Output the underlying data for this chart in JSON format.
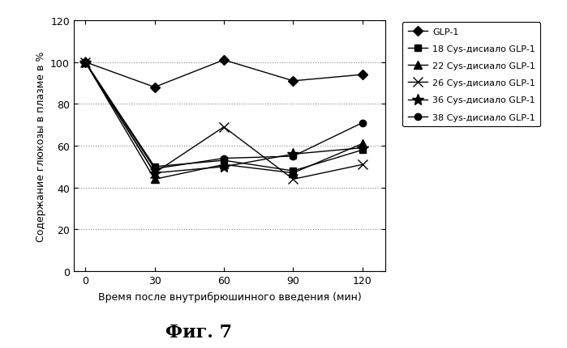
{
  "x": [
    0,
    30,
    60,
    90,
    120
  ],
  "series": [
    {
      "label": "GLP-1",
      "values": [
        100,
        88,
        101,
        91,
        94
      ],
      "marker": "D",
      "markersize": 6
    },
    {
      "label": "18 Cys-дисиало GLP-1",
      "values": [
        100,
        50,
        53,
        48,
        58
      ],
      "marker": "s",
      "markersize": 6
    },
    {
      "label": "22 Cys-дисиало GLP-1",
      "values": [
        100,
        44,
        51,
        47,
        61
      ],
      "marker": "^",
      "markersize": 7
    },
    {
      "label": "26 Cys-дисиало GLP-1",
      "values": [
        100,
        47,
        69,
        44,
        51
      ],
      "marker": "x",
      "markersize": 8
    },
    {
      "label": "36 Cys-дисиало GLP-1",
      "values": [
        100,
        47,
        50,
        56,
        59
      ],
      "marker": "*",
      "markersize": 10
    },
    {
      "label": "38 Cys-дисиало GLP-1",
      "values": [
        100,
        49,
        54,
        55,
        71
      ],
      "marker": "o",
      "markersize": 6
    }
  ],
  "xlabel": "Время после внутрибрюшинного введения (мин)",
  "ylabel": "Содержание глюкозы в плазме в %",
  "figcaption": "Фиг. 7",
  "ylim": [
    0,
    120
  ],
  "yticks": [
    0,
    20,
    40,
    60,
    80,
    100,
    120
  ],
  "xticks": [
    0,
    30,
    60,
    90,
    120
  ],
  "color": "#000000",
  "background_color": "#ffffff"
}
